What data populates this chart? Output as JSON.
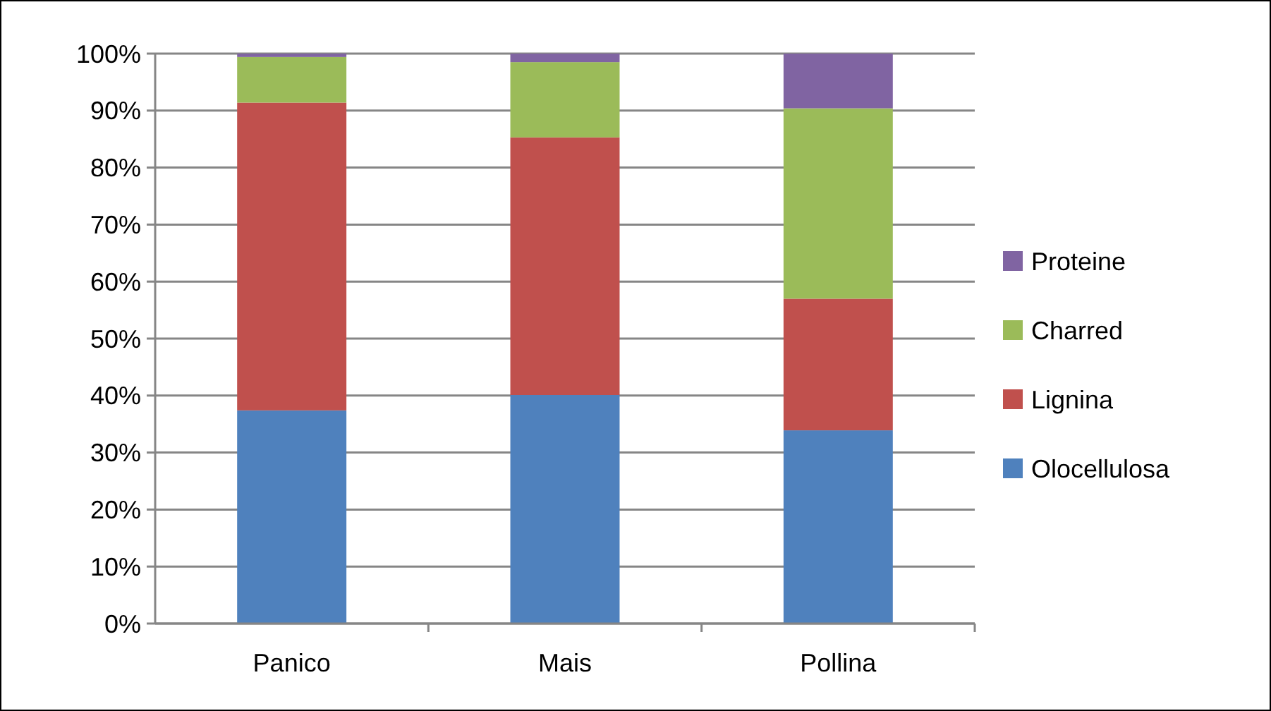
{
  "chart_data": {
    "type": "bar",
    "stacked": true,
    "categories": [
      "Panico",
      "Mais",
      "Pollina"
    ],
    "series": [
      {
        "name": "Olocellulosa",
        "color": "#4f81bd",
        "values": [
          37.4,
          40.1,
          33.9
        ]
      },
      {
        "name": "Lignina",
        "color": "#c0504d",
        "values": [
          54.0,
          45.2,
          23.1
        ]
      },
      {
        "name": "Charred",
        "color": "#9bbb59",
        "values": [
          8.0,
          13.2,
          33.4
        ]
      },
      {
        "name": "Proteine",
        "color": "#8064a2",
        "values": [
          0.6,
          1.5,
          9.6
        ]
      }
    ],
    "ylim": [
      0,
      100
    ],
    "yticks": [
      {
        "value": 0,
        "label": "0%"
      },
      {
        "value": 10,
        "label": "10%"
      },
      {
        "value": 20,
        "label": "20%"
      },
      {
        "value": 30,
        "label": "30%"
      },
      {
        "value": 40,
        "label": "40%"
      },
      {
        "value": 50,
        "label": "50%"
      },
      {
        "value": 60,
        "label": "60%"
      },
      {
        "value": 70,
        "label": "70%"
      },
      {
        "value": 80,
        "label": "80%"
      },
      {
        "value": 90,
        "label": "90%"
      },
      {
        "value": 100,
        "label": "100%"
      }
    ],
    "grid": "y",
    "legend": "right"
  }
}
